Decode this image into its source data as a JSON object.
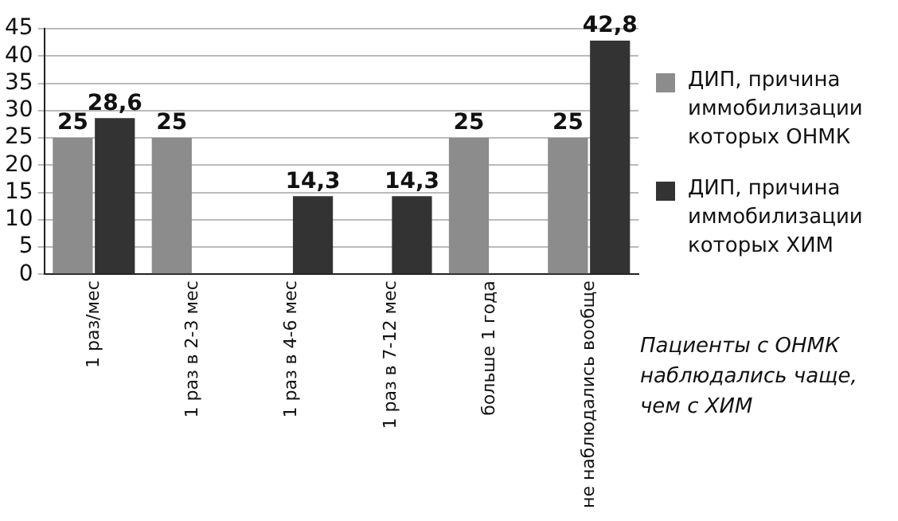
{
  "chart_data": {
    "type": "bar",
    "categories": [
      "1 раз/мес",
      "1 раз в 2-3 мес",
      "1 раз в 4-6 мес",
      "1 раз в 7-12 мес",
      "больше 1 года",
      "не наблюдались вообще"
    ],
    "series": [
      {
        "name": "ДИП, причина иммобилизации которых ОНМК",
        "color": "#8c8c8c",
        "values": [
          25,
          25,
          null,
          null,
          25,
          25
        ],
        "value_labels": [
          "25",
          "25",
          null,
          null,
          "25",
          "25"
        ]
      },
      {
        "name": "ДИП, причина иммобилизации которых ХИМ",
        "color": "#333333",
        "values": [
          28.6,
          null,
          14.3,
          14.3,
          null,
          42.8
        ],
        "value_labels": [
          "28,6",
          null,
          "14,3",
          "14,3",
          null,
          "42,8"
        ]
      }
    ],
    "ylim": [
      0,
      45
    ],
    "yticks": [
      0,
      5,
      10,
      15,
      20,
      25,
      30,
      35,
      40,
      45
    ],
    "grid": "y",
    "legend": "right",
    "annotations": [
      "Пациенты с ОНМК наблюдались чаще, чем с ХИМ"
    ]
  }
}
